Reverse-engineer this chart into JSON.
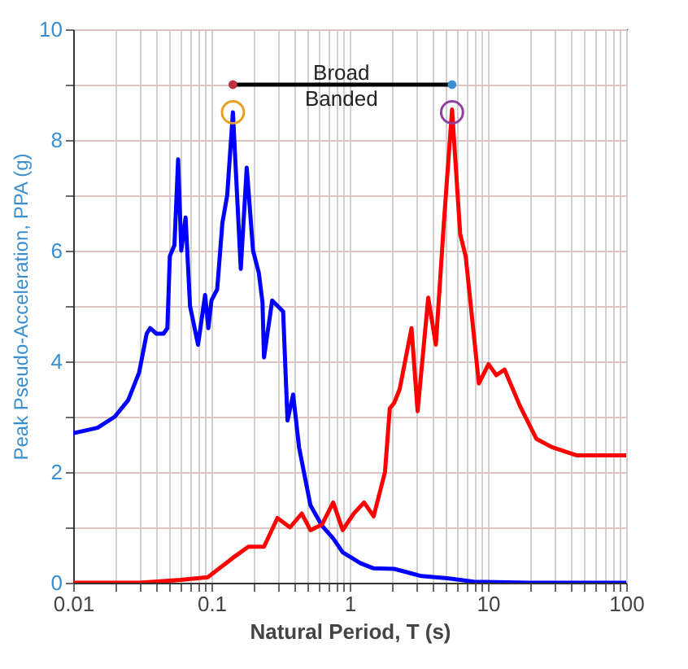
{
  "chart_data": {
    "type": "line",
    "xlabel": "Natural Period, T (s)",
    "ylabel": "Peak Pseudo-Acceleration, PPA (g)",
    "log": "x",
    "grid": true,
    "xlim": [
      0.01,
      100
    ],
    "xticks": [
      0.01,
      {
        "value": 0.02,
        "label": null
      },
      {
        "value": 0.03,
        "label": null
      },
      {
        "value": 0.04,
        "label": null
      },
      {
        "value": 0.05,
        "label": null
      },
      {
        "value": 0.06,
        "label": null
      },
      {
        "value": 0.07,
        "label": null
      },
      {
        "value": 0.08,
        "label": null
      },
      {
        "value": 0.09,
        "label": null
      },
      0.1,
      {
        "value": 0.2,
        "label": null
      },
      {
        "value": 0.3,
        "label": null
      },
      {
        "value": 0.4,
        "label": null
      },
      {
        "value": 0.5,
        "label": null
      },
      {
        "value": 0.6,
        "label": null
      },
      {
        "value": 0.7,
        "label": null
      },
      {
        "value": 0.8,
        "label": null
      },
      {
        "value": 0.9,
        "label": null
      },
      1,
      {
        "value": 2,
        "label": null
      },
      {
        "value": 3,
        "label": null
      },
      {
        "value": 4,
        "label": null
      },
      {
        "value": 5,
        "label": null
      },
      {
        "value": 6,
        "label": null
      },
      {
        "value": 7,
        "label": null
      },
      {
        "value": 8,
        "label": null
      },
      {
        "value": 9,
        "label": null
      },
      10,
      {
        "value": 20,
        "label": null
      },
      {
        "value": 30,
        "label": null
      },
      {
        "value": 40,
        "label": null
      },
      {
        "value": 50,
        "label": null
      },
      {
        "value": 60,
        "label": null
      },
      {
        "value": 70,
        "label": null
      },
      {
        "value": 80,
        "label": null
      },
      {
        "value": 90,
        "label": null
      },
      100
    ],
    "ylim": [
      0,
      10
    ],
    "yticks": [
      0,
      {
        "value": 1,
        "label": null
      },
      2,
      {
        "value": 3,
        "label": null
      },
      4,
      {
        "value": 5,
        "label": null
      },
      6,
      {
        "value": 7,
        "label": null
      },
      8,
      {
        "value": 9,
        "label": null
      },
      10
    ],
    "series": [
      {
        "color": "#0000ff",
        "x": [
          0.01,
          0.015,
          0.02,
          0.025,
          0.03,
          0.034,
          0.036,
          0.04,
          0.045,
          0.048,
          0.05,
          0.054,
          0.0574,
          0.0605,
          0.065,
          0.07,
          0.08,
          0.09,
          0.095,
          0.1,
          0.11,
          0.12,
          0.13,
          0.143,
          0.163,
          0.18,
          0.2,
          0.22,
          0.234,
          0.24,
          0.275,
          0.33,
          0.355,
          0.39,
          0.43,
          0.52,
          0.63,
          0.76,
          0.89,
          1.2,
          1.49,
          2.1,
          3.3,
          5.1,
          7.9,
          20,
          100
        ],
        "values": [
          2.7,
          2.8,
          3.0,
          3.3,
          3.8,
          4.5,
          4.6,
          4.5,
          4.5,
          4.6,
          5.9,
          6.1,
          7.65,
          6.0,
          6.6,
          5.0,
          4.3,
          5.2,
          4.6,
          5.1,
          5.3,
          6.5,
          7.0,
          8.5,
          5.67,
          7.5,
          6.0,
          5.6,
          5.07,
          4.07,
          5.1,
          4.9,
          2.93,
          3.4,
          2.45,
          1.4,
          1.03,
          0.8,
          0.55,
          0.35,
          0.26,
          0.25,
          0.12,
          0.08,
          0.02,
          0,
          0
        ]
      },
      {
        "color": "#ff0000",
        "x": [
          0.01,
          0.03,
          0.06,
          0.094,
          0.143,
          0.185,
          0.24,
          0.3,
          0.37,
          0.45,
          0.52,
          0.63,
          0.76,
          0.89,
          1.07,
          1.27,
          1.49,
          1.8,
          1.95,
          2.1,
          2.3,
          2.8,
          3.1,
          3.7,
          4.2,
          4.8,
          5.5,
          6.3,
          6.9,
          8.6,
          10.1,
          11.5,
          13.2,
          17,
          22.4,
          29,
          44,
          100
        ],
        "values": [
          0,
          0,
          0.05,
          0.1,
          0.45,
          0.65,
          0.65,
          1.17,
          1.0,
          1.25,
          0.95,
          1.05,
          1.45,
          0.95,
          1.25,
          1.45,
          1.2,
          2.0,
          3.15,
          3.25,
          3.5,
          4.6,
          3.1,
          5.15,
          4.3,
          6.5,
          8.55,
          6.3,
          5.9,
          3.6,
          3.95,
          3.75,
          3.85,
          3.2,
          2.6,
          2.45,
          2.3,
          2.3
        ]
      },
      {
        "type": "line",
        "color": "#000000",
        "x": [
          0.143,
          5.5
        ],
        "values": [
          9,
          9
        ]
      },
      {
        "type": "scatter",
        "marker": "circle",
        "color": "#c03040",
        "x": [
          0.143
        ],
        "values": [
          9
        ]
      },
      {
        "type": "scatter",
        "marker": "circle",
        "color": "#3a8fd0",
        "x": [
          5.5
        ],
        "values": [
          9
        ]
      },
      {
        "type": "scatter",
        "marker": "circle",
        "x": [
          0.143,
          5.5
        ],
        "values": [
          8.5,
          8.5
        ],
        "colors": [
          "#e8a020",
          "#9040a0"
        ]
      }
    ],
    "annotations": [
      "Broad",
      "Banded"
    ]
  }
}
